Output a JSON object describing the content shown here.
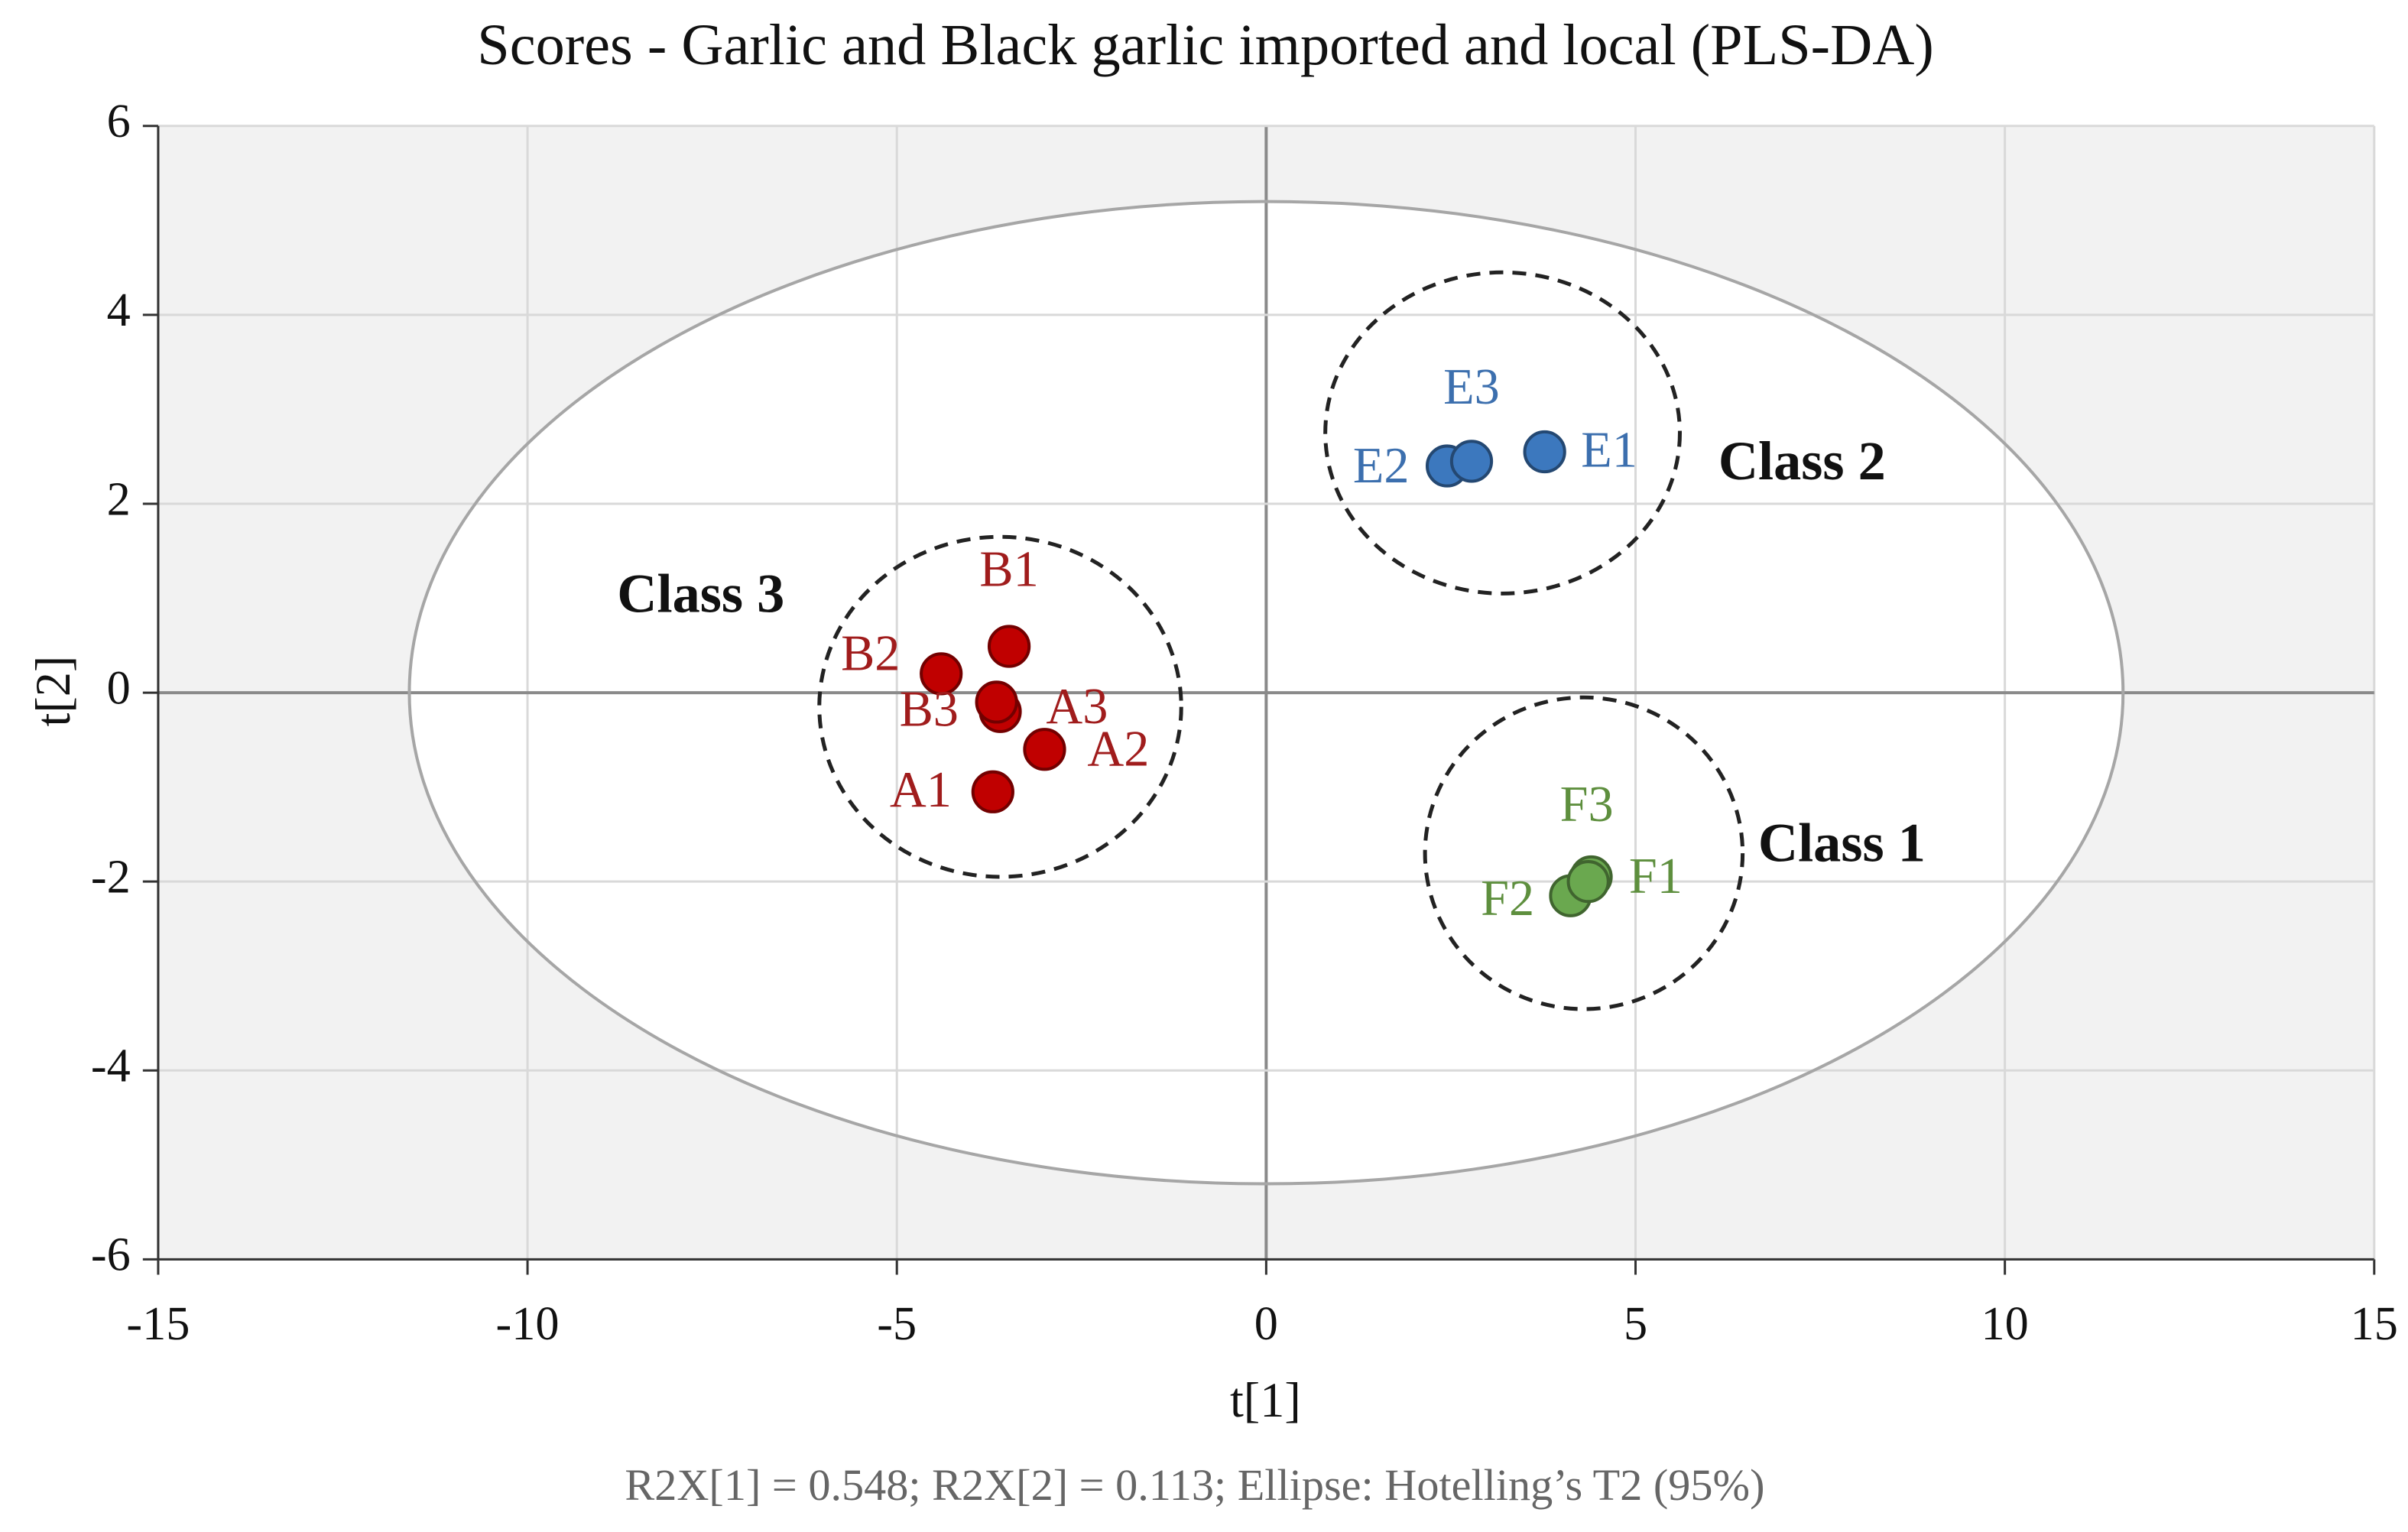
{
  "chart_data": {
    "type": "scatter",
    "title": "Scores - Garlic and Black garlic imported and  local (PLS-DA)",
    "x_label": "t[1]",
    "y_label": "t[2]",
    "note": "R2X[1] = 0.548; R2X[2] = 0.113; Ellipse: Hotelling’s T2 (95%)",
    "xlim": [
      -15,
      15
    ],
    "ylim": [
      -6,
      6
    ],
    "xticks": [
      -15,
      -10,
      -5,
      0,
      5,
      10,
      15
    ],
    "yticks": [
      -6,
      -4,
      -2,
      0,
      2,
      4,
      6
    ],
    "grid": true,
    "hotelling_ellipse": {
      "center": [
        0,
        0
      ],
      "radii": [
        11.6,
        5.2
      ]
    },
    "series": [
      {
        "name": "Class 3",
        "color": "#c00000",
        "labels": [
          "A1",
          "A2",
          "A3",
          "B1",
          "B2",
          "B3"
        ],
        "x": [
          -3.7,
          -3.0,
          -3.6,
          -3.48,
          -4.4,
          -3.65
        ],
        "values": [
          -1.05,
          -0.6,
          -0.2,
          0.49,
          0.2,
          -0.1
        ],
        "class_circle": {
          "center": [
            -3.6,
            -0.15
          ],
          "radii": [
            2.45,
            1.8
          ]
        }
      },
      {
        "name": "Class 2",
        "color": "#3c78be",
        "labels": [
          "E1",
          "E2",
          "E3"
        ],
        "x": [
          3.77,
          2.45,
          2.78
        ],
        "values": [
          2.55,
          2.4,
          2.45
        ],
        "class_circle": {
          "center": [
            3.2,
            2.75
          ],
          "radii": [
            2.4,
            1.7
          ]
        }
      },
      {
        "name": "Class 1",
        "color": "#6aa84f",
        "labels": [
          "F1",
          "F2",
          "F3"
        ],
        "x": [
          4.4,
          4.12,
          4.36
        ],
        "values": [
          -1.95,
          -2.15,
          -2.0
        ],
        "class_circle": {
          "center": [
            4.3,
            -1.7
          ],
          "radii": [
            2.15,
            1.65
          ]
        }
      }
    ]
  }
}
